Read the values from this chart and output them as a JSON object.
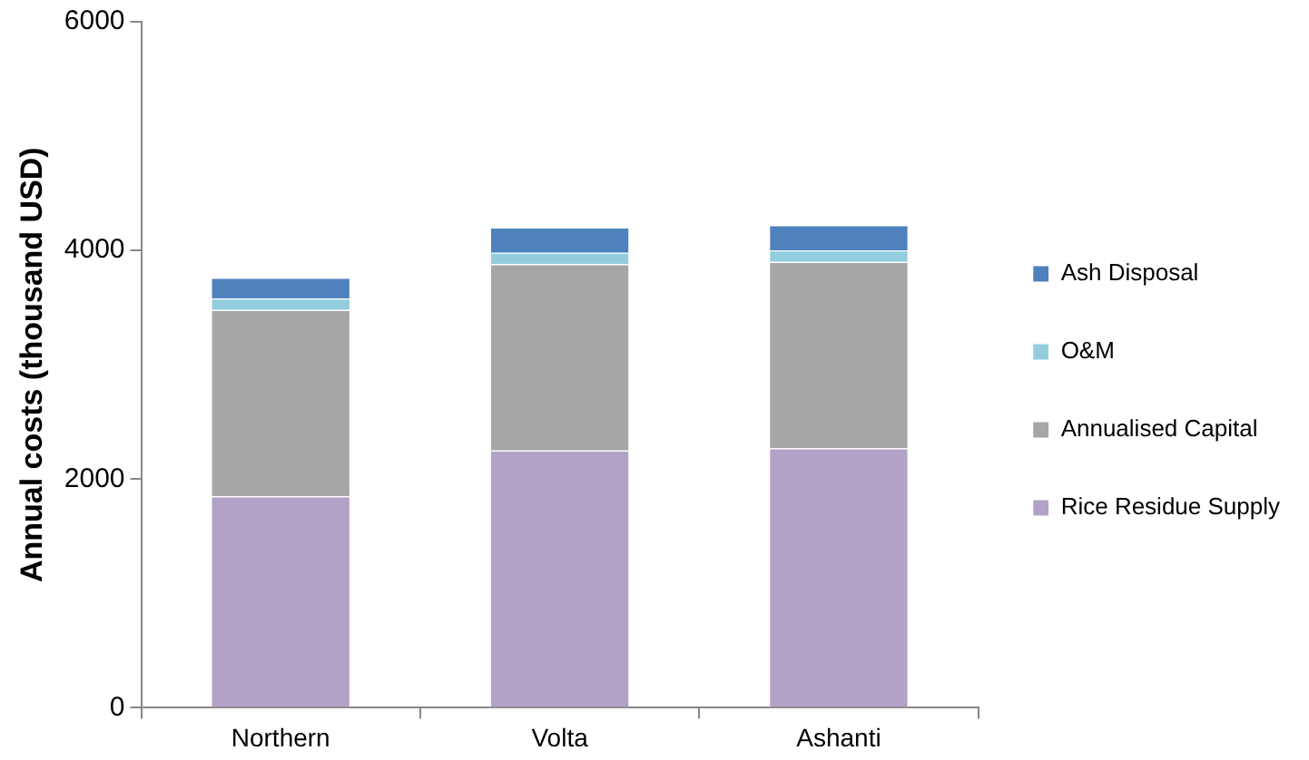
{
  "chart_data": {
    "type": "bar",
    "stacked": true,
    "ylabel": "Annual costs (thousand USD)",
    "categories": [
      "Northern",
      "Volta",
      "Ashanti"
    ],
    "series": [
      {
        "name": "Rice Residue Supply",
        "color": "#b2a2c7",
        "values": [
          1850,
          2250,
          2270
        ]
      },
      {
        "name": "Annualised Capital",
        "color": "#a6a6a6",
        "values": [
          1630,
          1630,
          1630
        ]
      },
      {
        "name": "O&M",
        "color": "#93cddd",
        "values": [
          100,
          100,
          100
        ]
      },
      {
        "name": "Ash Disposal",
        "color": "#4f81bd",
        "values": [
          180,
          220,
          220
        ]
      }
    ],
    "ylim": [
      0,
      6000
    ],
    "yticks": [
      0,
      2000,
      4000,
      6000
    ],
    "grid": false,
    "legend": "right"
  }
}
